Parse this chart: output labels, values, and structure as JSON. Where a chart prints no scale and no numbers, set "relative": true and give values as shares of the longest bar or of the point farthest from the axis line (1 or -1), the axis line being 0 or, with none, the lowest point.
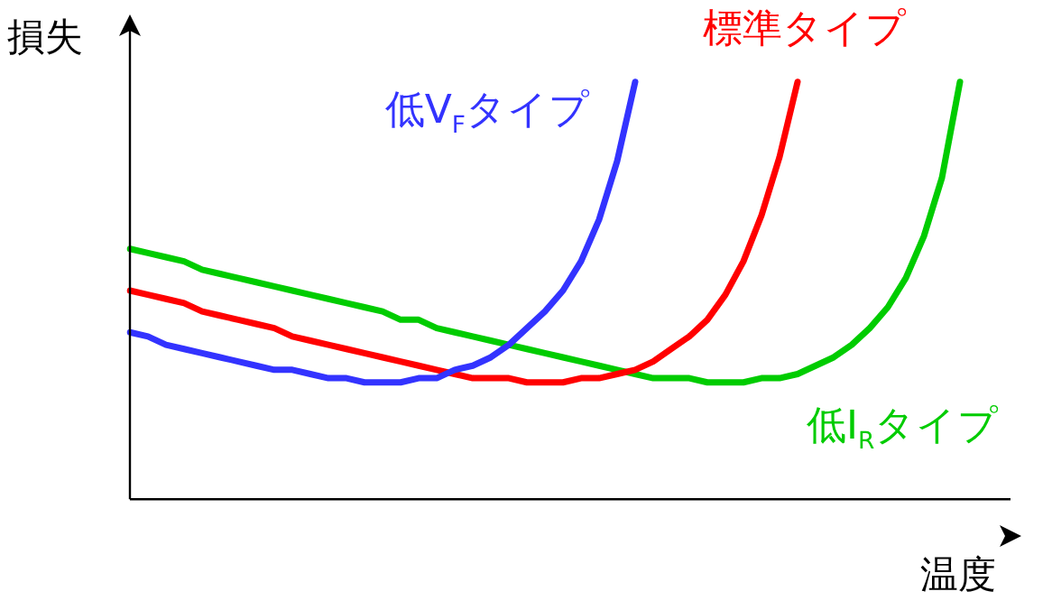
{
  "chart_data": {
    "type": "line",
    "relative": true,
    "xlabel": "温度",
    "ylabel": "損失",
    "categories": [
      null,
      null,
      null,
      null,
      null,
      null,
      null,
      null,
      null,
      null,
      null,
      null,
      null,
      null,
      null,
      null,
      null,
      null,
      null,
      null,
      null,
      null,
      null,
      null,
      null,
      null,
      null,
      null,
      null,
      null,
      null,
      null,
      null,
      null,
      null,
      null,
      null,
      null,
      null,
      null,
      null,
      null,
      null,
      null,
      null,
      null,
      null,
      null,
      null
    ],
    "series": [
      {
        "name": "低V$_{F}$タイプ",
        "color": "#3333ff",
        "values": [
          0.4,
          0.39,
          0.37,
          0.36,
          0.35,
          0.34,
          0.33,
          0.32,
          0.31,
          0.31,
          0.3,
          0.29,
          0.29,
          0.28,
          0.28,
          0.28,
          0.29,
          0.29,
          0.31,
          0.32,
          0.34,
          0.37,
          0.41,
          0.45,
          0.5,
          0.57,
          0.67,
          0.81,
          1,
          null,
          null,
          null,
          null,
          null,
          null,
          null,
          null,
          null,
          null,
          null,
          null,
          null,
          null,
          null,
          null,
          null,
          null,
          null,
          null
        ]
      },
      {
        "name": "標準タイプ",
        "color": "#ff0000",
        "values": [
          0.5,
          0.49,
          0.48,
          0.47,
          0.45,
          0.44,
          0.43,
          0.42,
          0.41,
          0.39,
          0.38,
          0.37,
          0.36,
          0.35,
          0.34,
          0.33,
          0.32,
          0.31,
          0.3,
          0.29,
          0.29,
          0.29,
          0.28,
          0.28,
          0.28,
          0.29,
          0.29,
          0.3,
          0.31,
          0.33,
          0.36,
          0.39,
          0.43,
          0.49,
          0.57,
          0.68,
          0.82,
          1,
          null,
          null,
          null,
          null,
          null,
          null,
          null,
          null,
          null,
          null,
          null
        ]
      },
      {
        "name": "低I$_{R}$タイプ",
        "color": "#00cc00",
        "values": [
          0.6,
          0.59,
          0.58,
          0.57,
          0.55,
          0.54,
          0.53,
          0.52,
          0.51,
          0.5,
          0.49,
          0.48,
          0.47,
          0.46,
          0.45,
          0.43,
          0.43,
          0.41,
          0.4,
          0.39,
          0.38,
          0.37,
          0.36,
          0.35,
          0.34,
          0.33,
          0.32,
          0.31,
          0.3,
          0.29,
          0.29,
          0.29,
          0.28,
          0.28,
          0.28,
          0.29,
          0.29,
          0.3,
          0.32,
          0.34,
          0.37,
          0.41,
          0.46,
          0.53,
          0.63,
          0.77,
          1,
          null,
          null
        ]
      }
    ],
    "grid": false,
    "legend": false,
    "marker": "none",
    "line_style": "solid"
  }
}
